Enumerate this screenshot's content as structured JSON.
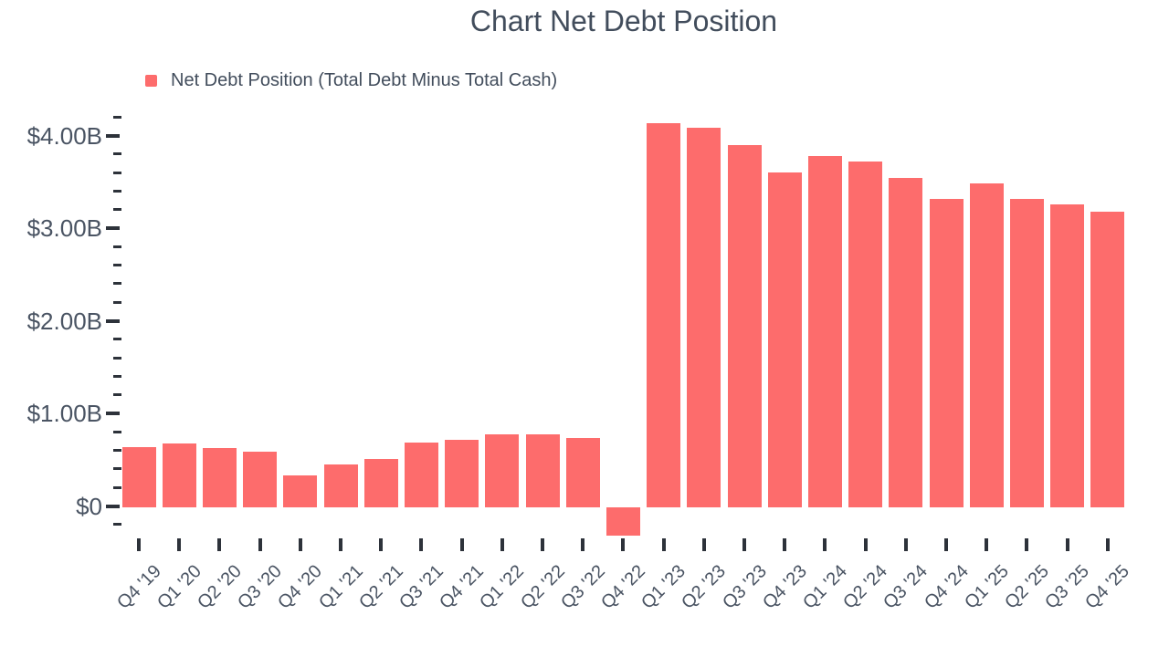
{
  "title": "Chart Net Debt Position",
  "legend": {
    "label": "Net Debt Position (Total Debt Minus Total Cash)",
    "marker_color": "#FD6C6C",
    "position": "top-left"
  },
  "colors": {
    "bar": "#FD6C6C",
    "title_text": "#424D5C",
    "axis_text": "#4A5463",
    "tick": "#2D323A",
    "background": "#FFFFFF"
  },
  "y_axis": {
    "tick_labels": [
      "$0",
      "$1.00B",
      "$2.00B",
      "$3.00B",
      "$4.00B"
    ],
    "major_interval_billions": 1.0,
    "minor_interval_billions": 0.2,
    "min_billions": -0.2,
    "max_billions": 4.2
  },
  "chart_data": {
    "type": "bar",
    "title": "Chart Net Debt Position",
    "categories": [
      "Q4 '19",
      "Q1 '20",
      "Q2 '20",
      "Q3 '20",
      "Q4 '20",
      "Q1 '21",
      "Q2 '21",
      "Q3 '21",
      "Q4 '21",
      "Q1 '22",
      "Q2 '22",
      "Q3 '22",
      "Q4 '22",
      "Q1 '23",
      "Q2 '23",
      "Q3 '23",
      "Q4 '23",
      "Q1 '24",
      "Q2 '24",
      "Q3 '24",
      "Q4 '24",
      "Q1 '25",
      "Q2 '25",
      "Q3 '25",
      "Q4 '25"
    ],
    "series": [
      {
        "name": "Net Debt Position (Total Debt Minus Total Cash)",
        "color": "#FD6C6C",
        "values_billions": [
          0.65,
          0.69,
          0.64,
          0.6,
          0.34,
          0.46,
          0.52,
          0.7,
          0.73,
          0.79,
          0.79,
          0.75,
          -0.31,
          4.15,
          4.1,
          3.91,
          3.62,
          3.79,
          3.73,
          3.56,
          3.33,
          3.5,
          3.33,
          3.27,
          3.19
        ]
      }
    ],
    "xlabel": "",
    "ylabel": "",
    "y_tick_labels": [
      "$0",
      "$1.00B",
      "$2.00B",
      "$3.00B",
      "$4.00B"
    ],
    "ylim_billions": [
      -0.45,
      4.3
    ],
    "grid": false,
    "legend_position": "top-left"
  }
}
